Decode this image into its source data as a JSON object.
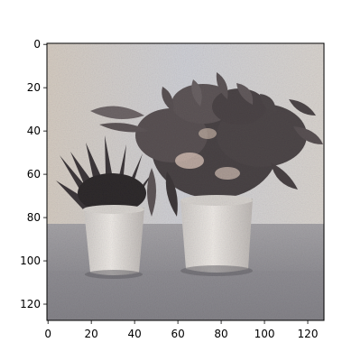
{
  "image": {
    "subject": "two potted plants on a table",
    "colors": {
      "background": "#c9c3bb",
      "wall_light": "#d8d2cb",
      "table": "#8f8f93",
      "pot": "#e7e3df",
      "leaves_dark": "#3f3b3d",
      "leaves_mid": "#6a6264",
      "axes": "#000000"
    }
  },
  "axes": {
    "x_ticks": [
      "0",
      "20",
      "40",
      "60",
      "80",
      "100",
      "120"
    ],
    "y_ticks": [
      "0",
      "20",
      "40",
      "60",
      "80",
      "100",
      "120"
    ],
    "xlim": [
      -0.5,
      127.5
    ],
    "ylim": [
      127.5,
      -0.5
    ]
  }
}
